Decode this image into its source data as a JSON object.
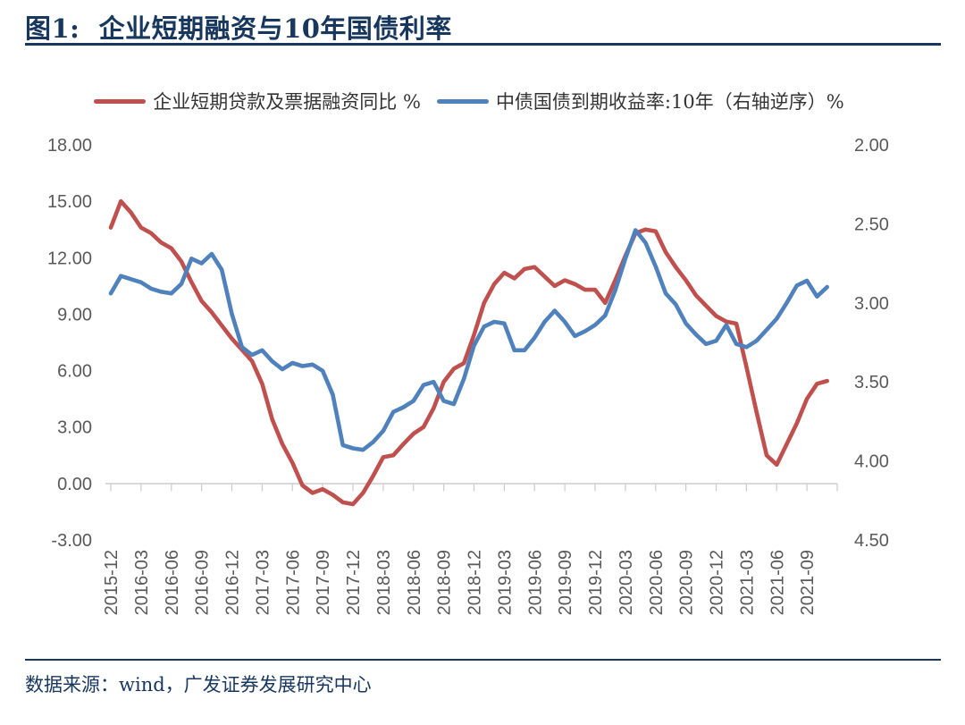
{
  "page": {
    "title": "图1:  企业短期融资与10年国债利率",
    "source": "数据来源：wind，广发证券发展研究中心"
  },
  "colors": {
    "accent_navy": "#17375e",
    "series_red": "#c0504d",
    "series_blue": "#4f81bd",
    "axis_text": "#595959",
    "axis_line": "#cccccc"
  },
  "chart_data": {
    "type": "line",
    "title": "图1: 企业短期融资与10年国债利率",
    "x_start": "2015-12",
    "x_frequency": "monthly",
    "x_tick_labels": [
      "2015-12",
      "2016-03",
      "2016-06",
      "2016-09",
      "2016-12",
      "2017-03",
      "2017-06",
      "2017-09",
      "2017-12",
      "2018-03",
      "2018-06",
      "2018-09",
      "2018-12",
      "2019-03",
      "2019-06",
      "2019-09",
      "2019-12",
      "2020-03",
      "2020-06",
      "2020-09",
      "2020-12",
      "2021-03",
      "2021-06",
      "2021-09"
    ],
    "series": [
      {
        "name": "企业短期贷款及票据融资同比 %",
        "axis": "left",
        "color": "#c0504d",
        "values": [
          13.6,
          15.0,
          14.4,
          13.6,
          13.3,
          12.8,
          12.5,
          11.8,
          10.7,
          9.7,
          9.1,
          8.4,
          7.7,
          7.1,
          6.5,
          5.3,
          3.4,
          2.1,
          1.1,
          -0.1,
          -0.5,
          -0.3,
          -0.6,
          -1.0,
          -1.1,
          -0.5,
          0.4,
          1.4,
          1.5,
          2.1,
          2.65,
          3.0,
          4.0,
          5.4,
          6.1,
          6.4,
          7.9,
          9.6,
          10.6,
          11.2,
          10.9,
          11.4,
          11.5,
          11.0,
          10.5,
          10.8,
          10.6,
          10.3,
          10.3,
          9.6,
          10.8,
          12.1,
          13.3,
          13.5,
          13.4,
          12.3,
          11.5,
          10.8,
          10.0,
          9.45,
          8.9,
          8.6,
          8.5,
          6.2,
          3.8,
          1.5,
          1.0,
          2.1,
          3.2,
          4.5,
          5.3,
          5.45
        ]
      },
      {
        "name": "中债国债到期收益率:10年（右轴逆序）%",
        "axis": "right",
        "color": "#4f81bd",
        "values": [
          2.94,
          2.83,
          2.85,
          2.87,
          2.91,
          2.93,
          2.94,
          2.88,
          2.72,
          2.75,
          2.69,
          2.79,
          3.07,
          3.28,
          3.33,
          3.3,
          3.37,
          3.42,
          3.38,
          3.4,
          3.39,
          3.43,
          3.58,
          3.9,
          3.92,
          3.93,
          3.88,
          3.81,
          3.69,
          3.66,
          3.62,
          3.52,
          3.5,
          3.62,
          3.64,
          3.48,
          3.27,
          3.15,
          3.12,
          3.13,
          3.3,
          3.3,
          3.22,
          3.12,
          3.05,
          3.12,
          3.21,
          3.18,
          3.14,
          3.08,
          2.92,
          2.72,
          2.54,
          2.62,
          2.77,
          2.94,
          3.01,
          3.13,
          3.2,
          3.26,
          3.24,
          3.14,
          3.26,
          3.28,
          3.24,
          3.17,
          3.1,
          3.0,
          2.89,
          2.86,
          2.96,
          2.9
        ]
      }
    ],
    "left_axis": {
      "min": -3,
      "max": 18,
      "tick_labels": [
        "18.00",
        "15.00",
        "12.00",
        "9.00",
        "6.00",
        "3.00",
        "0.00",
        "-3.00"
      ],
      "tick_values": [
        18,
        15,
        12,
        9,
        6,
        3,
        0,
        -3
      ]
    },
    "right_axis": {
      "min": 2.0,
      "max": 4.5,
      "reversed": true,
      "tick_labels": [
        "2.00",
        "2.50",
        "3.00",
        "3.50",
        "4.00",
        "4.50"
      ],
      "tick_values": [
        2.0,
        2.5,
        3.0,
        3.5,
        4.0,
        4.5
      ]
    },
    "grid": false,
    "legend_position": "top",
    "baseline_value": 0
  }
}
